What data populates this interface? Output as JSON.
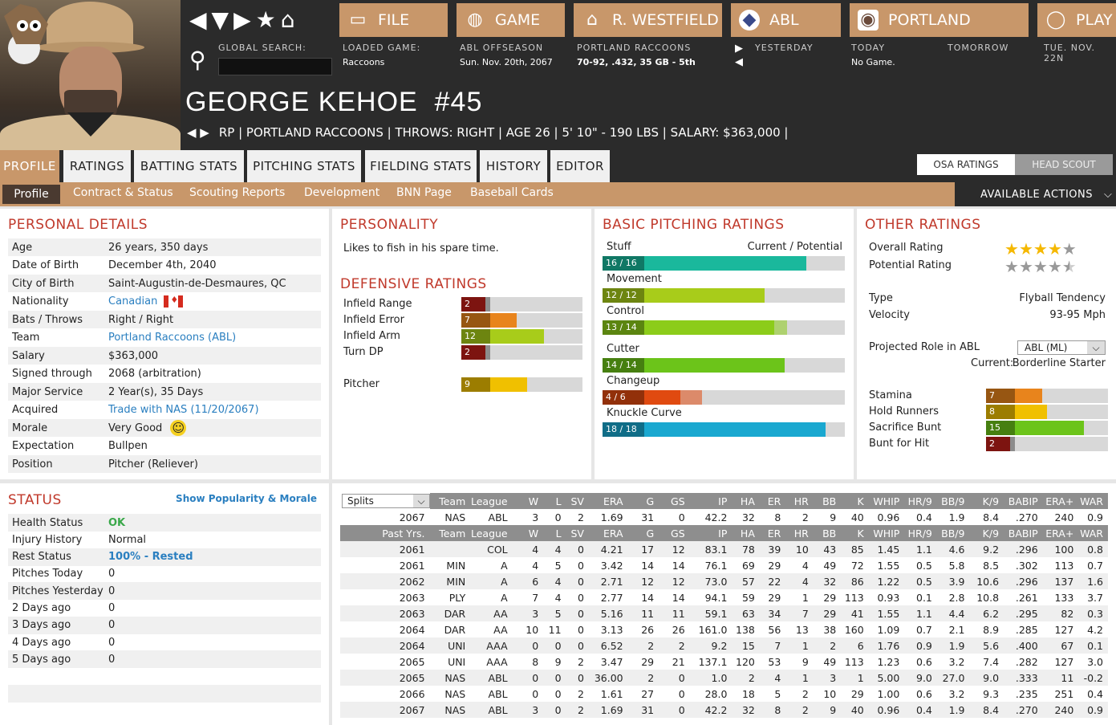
{
  "nav": {
    "global_search": "GLOBAL SEARCH:"
  },
  "toolbar": [
    {
      "label": "FILE",
      "icon": "folder-icon"
    },
    {
      "label": "GAME",
      "icon": "globe-icon"
    },
    {
      "label": "R. WESTFIELD",
      "icon": "home-icon"
    },
    {
      "label": "ABL",
      "icon": "league-logo-icon"
    },
    {
      "label": "PORTLAND",
      "icon": "team-logo-icon"
    },
    {
      "label": "PLAY",
      "icon": "play-icon"
    }
  ],
  "info": {
    "loaded_label": "LOADED GAME:",
    "loaded_value": "Raccoons",
    "offseason_label": "ABL OFFSEASON",
    "offseason_value": "Sun. Nov. 20th, 2067",
    "team_label": "PORTLAND RACCOONS",
    "team_value": "70-92, .432, 35 GB - 5th",
    "yesterday": "YESTERDAY",
    "today": "TODAY",
    "today_value": "No Game.",
    "tomorrow": "TOMORROW",
    "next_date": "TUE. NOV. 22N"
  },
  "player": {
    "name": "GEORGE KEHOE",
    "number": "#45",
    "subtitle": "RP | PORTLAND RACCOONS  |  THROWS: RIGHT  |  AGE 26  |  5' 10\" - 190 LBS  |  SALARY: $363,000  |"
  },
  "tabs": [
    "PROFILE",
    "RATINGS",
    "BATTING STATS",
    "PITCHING STATS",
    "FIELDING STATS",
    "HISTORY",
    "EDITOR"
  ],
  "scout": [
    "OSA RATINGS",
    "HEAD SCOUT"
  ],
  "subnav": [
    "Profile",
    "Contract & Status",
    "Scouting Reports",
    "Development",
    "BNN Page",
    "Baseball Cards"
  ],
  "actions": "AVAILABLE ACTIONS",
  "personal": {
    "title": "PERSONAL DETAILS",
    "rows": [
      [
        "Age",
        "26 years, 350 days"
      ],
      [
        "Date of Birth",
        "December 4th, 2040"
      ],
      [
        "City of Birth",
        "Saint-Augustin-de-Desmaures, QC"
      ],
      [
        "Nationality",
        "Canadian"
      ],
      [
        "Bats / Throws",
        "Right / Right"
      ],
      [
        "Team",
        "Portland Raccoons (ABL)"
      ],
      [
        "Salary",
        "$363,000"
      ],
      [
        "Signed through",
        "2068 (arbitration)"
      ],
      [
        "Major Service",
        "2 Year(s), 35 Days"
      ],
      [
        "Acquired",
        "Trade with NAS (11/20/2067)"
      ],
      [
        "Morale",
        "Very Good"
      ],
      [
        "Expectation",
        "Bullpen"
      ],
      [
        "Position",
        "Pitcher (Reliever)"
      ]
    ]
  },
  "personality": {
    "title": "PERSONALITY",
    "text": "Likes to fish in his spare time."
  },
  "defensive": {
    "title": "DEFENSIVE RATINGS",
    "rows": [
      {
        "label": "Infield Range",
        "value": "2",
        "level": 0.2,
        "color": "#c0201a"
      },
      {
        "label": "Infield Error",
        "value": "7",
        "level": 0.46,
        "color": "#e8841c"
      },
      {
        "label": "Infield Arm",
        "value": "12",
        "level": 0.68,
        "color": "#a8cc1a"
      },
      {
        "label": "Turn DP",
        "value": "2",
        "level": 0.2,
        "color": "#c0201a"
      },
      {
        "label": "Pitcher",
        "value": "9",
        "level": 0.54,
        "color": "#f0c000"
      }
    ]
  },
  "pitching": {
    "title": "BASIC PITCHING RATINGS",
    "header": "Current / Potential",
    "rows": [
      {
        "label": "Stuff",
        "value": "16 / 16",
        "cur": 0.84,
        "pot": 0.84,
        "color": "#1ab89c"
      },
      {
        "label": "Movement",
        "value": "12 / 12",
        "cur": 0.67,
        "pot": 0.67,
        "color": "#a8cc1a"
      },
      {
        "label": "Control",
        "value": "13 / 14",
        "cur": 0.71,
        "pot": 0.76,
        "color": "#8ccc1a"
      },
      {
        "label": "Cutter",
        "value": "14 / 14",
        "cur": 0.75,
        "pot": 0.75,
        "color": "#6cc41a"
      },
      {
        "label": "Changeup",
        "value": "4 / 6",
        "cur": 0.32,
        "pot": 0.41,
        "color": "#e04a10"
      },
      {
        "label": "Knuckle Curve",
        "value": "18 / 18",
        "cur": 0.92,
        "pot": 0.92,
        "color": "#1aa8d0"
      }
    ]
  },
  "other": {
    "title": "OTHER RATINGS",
    "overall": "Overall Rating",
    "potential": "Potential Rating",
    "overall_stars": 4,
    "potential_stars": 4.5,
    "type_label": "Type",
    "type_value": "Flyball Tendency",
    "velocity_label": "Velocity",
    "velocity_value": "93-95 Mph",
    "role_label": "Projected Role in ABL",
    "role_select": "ABL (ML)",
    "current_label": "Current:",
    "current_value": "Borderline Starter",
    "bars": [
      {
        "label": "Stamina",
        "value": "7",
        "level": 0.46,
        "color": "#e8841c"
      },
      {
        "label": "Hold Runners",
        "value": "8",
        "level": 0.5,
        "color": "#f0c000"
      },
      {
        "label": "Sacrifice Bunt",
        "value": "15",
        "level": 0.8,
        "color": "#6cc41a"
      },
      {
        "label": "Bunt for Hit",
        "value": "2",
        "level": 0.2,
        "color": "#c0201a"
      }
    ]
  },
  "status": {
    "title": "STATUS",
    "link": "Show Popularity & Morale",
    "rows": [
      [
        "Health Status",
        "OK"
      ],
      [
        "Injury History",
        "Normal"
      ],
      [
        "Rest Status",
        "100% - Rested"
      ],
      [
        "Pitches Today",
        "0"
      ],
      [
        "Pitches Yesterday",
        "0"
      ],
      [
        "2 Days ago",
        "0"
      ],
      [
        "3 Days ago",
        "0"
      ],
      [
        "4 Days ago",
        "0"
      ],
      [
        "5 Days ago",
        "0"
      ]
    ]
  },
  "stats": {
    "splits": "Splits",
    "cols": [
      "Team",
      "League",
      "W",
      "L",
      "SV",
      "ERA",
      "G",
      "GS",
      "IP",
      "HA",
      "ER",
      "HR",
      "BB",
      "K",
      "WHIP",
      "HR/9",
      "BB/9",
      "K/9",
      "BABIP",
      "ERA+",
      "WAR"
    ],
    "current": [
      "2067",
      "NAS",
      "ABL",
      "3",
      "0",
      "2",
      "1.69",
      "31",
      "0",
      "42.2",
      "32",
      "8",
      "2",
      "9",
      "40",
      "0.96",
      "0.4",
      "1.9",
      "8.4",
      ".270",
      "240",
      "0.9"
    ],
    "past_label": "Past Yrs.",
    "rows": [
      [
        "2061",
        "",
        "COL",
        "4",
        "4",
        "0",
        "4.21",
        "17",
        "12",
        "83.1",
        "78",
        "39",
        "10",
        "43",
        "85",
        "1.45",
        "1.1",
        "4.6",
        "9.2",
        ".296",
        "100",
        "0.8"
      ],
      [
        "2061",
        "MIN",
        "A",
        "4",
        "5",
        "0",
        "3.42",
        "14",
        "14",
        "76.1",
        "69",
        "29",
        "4",
        "49",
        "72",
        "1.55",
        "0.5",
        "5.8",
        "8.5",
        ".302",
        "113",
        "0.7"
      ],
      [
        "2062",
        "MIN",
        "A",
        "6",
        "4",
        "0",
        "2.71",
        "12",
        "12",
        "73.0",
        "57",
        "22",
        "4",
        "32",
        "86",
        "1.22",
        "0.5",
        "3.9",
        "10.6",
        ".296",
        "137",
        "1.6"
      ],
      [
        "2063",
        "PLY",
        "A",
        "7",
        "4",
        "0",
        "2.77",
        "14",
        "14",
        "94.1",
        "59",
        "29",
        "1",
        "29",
        "113",
        "0.93",
        "0.1",
        "2.8",
        "10.8",
        ".261",
        "133",
        "3.7"
      ],
      [
        "2063",
        "DAR",
        "AA",
        "3",
        "5",
        "0",
        "5.16",
        "11",
        "11",
        "59.1",
        "63",
        "34",
        "7",
        "29",
        "41",
        "1.55",
        "1.1",
        "4.4",
        "6.2",
        ".295",
        "82",
        "0.3"
      ],
      [
        "2064",
        "DAR",
        "AA",
        "10",
        "11",
        "0",
        "3.13",
        "26",
        "26",
        "161.0",
        "138",
        "56",
        "13",
        "38",
        "160",
        "1.09",
        "0.7",
        "2.1",
        "8.9",
        ".285",
        "127",
        "4.2"
      ],
      [
        "2064",
        "UNI",
        "AAA",
        "0",
        "0",
        "0",
        "6.52",
        "2",
        "2",
        "9.2",
        "15",
        "7",
        "1",
        "2",
        "6",
        "1.76",
        "0.9",
        "1.9",
        "5.6",
        ".400",
        "67",
        "0.1"
      ],
      [
        "2065",
        "UNI",
        "AAA",
        "8",
        "9",
        "2",
        "3.47",
        "29",
        "21",
        "137.1",
        "120",
        "53",
        "9",
        "49",
        "113",
        "1.23",
        "0.6",
        "3.2",
        "7.4",
        ".282",
        "127",
        "3.0"
      ],
      [
        "2065",
        "NAS",
        "ABL",
        "0",
        "0",
        "0",
        "36.00",
        "2",
        "0",
        "1.0",
        "2",
        "4",
        "1",
        "3",
        "1",
        "5.00",
        "9.0",
        "27.0",
        "9.0",
        ".333",
        "11",
        "-0.2"
      ],
      [
        "2066",
        "NAS",
        "ABL",
        "0",
        "0",
        "2",
        "1.61",
        "27",
        "0",
        "28.0",
        "18",
        "5",
        "2",
        "10",
        "29",
        "1.00",
        "0.6",
        "3.2",
        "9.3",
        ".235",
        "251",
        "0.4"
      ],
      [
        "2067",
        "NAS",
        "ABL",
        "3",
        "0",
        "2",
        "1.69",
        "31",
        "0",
        "42.2",
        "32",
        "8",
        "2",
        "9",
        "40",
        "0.96",
        "0.4",
        "1.9",
        "8.4",
        ".270",
        "240",
        "0.9"
      ]
    ]
  }
}
